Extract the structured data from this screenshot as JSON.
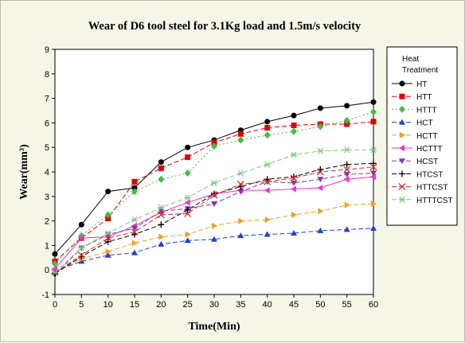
{
  "chart_data": {
    "type": "line",
    "title": "Wear of D6 tool steel for 3.1Kg load and 1.5m/s velocity",
    "xlabel": "Time(Min)",
    "ylabel": "Wear(mm³)",
    "xlim": [
      0,
      60
    ],
    "ylim": [
      -1,
      9
    ],
    "xticks": [
      0,
      5,
      10,
      15,
      20,
      25,
      30,
      35,
      40,
      45,
      50,
      55,
      60
    ],
    "yticks": [
      -1,
      0,
      1,
      2,
      3,
      4,
      5,
      6,
      7,
      8,
      9
    ],
    "legend_title_line1": "Heat",
    "legend_title_line2": "Treatment",
    "legend_position": "right",
    "x": [
      0,
      5,
      10,
      15,
      20,
      25,
      30,
      35,
      40,
      45,
      50,
      55,
      60
    ],
    "series": [
      {
        "name": "HT",
        "color": "#000000",
        "marker": "circle",
        "dash": "",
        "values": [
          0.65,
          1.85,
          3.2,
          3.35,
          4.4,
          5.0,
          5.3,
          5.7,
          6.05,
          6.3,
          6.6,
          6.7,
          6.85
        ]
      },
      {
        "name": "HTT",
        "color": "#e00000",
        "marker": "square",
        "dash": "6,3",
        "values": [
          0.35,
          1.3,
          2.1,
          3.6,
          4.15,
          4.6,
          5.2,
          5.55,
          5.8,
          5.9,
          5.95,
          5.95,
          6.05
        ]
      },
      {
        "name": "HTTT",
        "color": "#44bb44",
        "marker": "diamond",
        "dash": "2,3",
        "values": [
          0.25,
          1.4,
          2.25,
          3.2,
          3.7,
          3.95,
          5.05,
          5.3,
          5.5,
          5.65,
          5.85,
          6.1,
          6.45
        ]
      },
      {
        "name": "HCT",
        "color": "#1f3fcc",
        "marker": "triangle-up",
        "dash": "6,3",
        "values": [
          -0.05,
          0.35,
          0.6,
          0.7,
          1.05,
          1.2,
          1.25,
          1.4,
          1.45,
          1.5,
          1.6,
          1.65,
          1.7
        ]
      },
      {
        "name": "HCTT",
        "color": "#f0a020",
        "marker": "triangle-right",
        "dash": "6,3",
        "values": [
          -0.1,
          0.45,
          0.75,
          1.1,
          1.35,
          1.45,
          1.8,
          2.0,
          2.05,
          2.25,
          2.4,
          2.65,
          2.7
        ]
      },
      {
        "name": "HCTTT",
        "color": "#ee33cc",
        "marker": "triangle-left",
        "dash": "",
        "values": [
          0.05,
          1.3,
          1.35,
          1.8,
          2.35,
          2.75,
          3.1,
          3.25,
          3.25,
          3.3,
          3.35,
          3.7,
          3.8
        ]
      },
      {
        "name": "HCST",
        "color": "#8833aa",
        "marker": "triangle-down",
        "dash": "6,3",
        "values": [
          -0.2,
          0.9,
          1.45,
          1.7,
          2.4,
          2.5,
          2.7,
          3.2,
          3.6,
          3.55,
          3.7,
          3.9,
          3.95
        ]
      },
      {
        "name": "HTCST",
        "color": "#000000",
        "marker": "plus",
        "dash": "6,3",
        "values": [
          -0.15,
          0.55,
          1.15,
          1.45,
          1.85,
          2.45,
          3.1,
          3.4,
          3.7,
          3.8,
          4.1,
          4.3,
          4.35
        ]
      },
      {
        "name": "HTTCST",
        "color": "#d03030",
        "marker": "x",
        "dash": "6,3",
        "values": [
          -0.1,
          0.6,
          1.3,
          1.55,
          2.25,
          2.3,
          3.05,
          3.5,
          3.6,
          3.75,
          4.0,
          4.1,
          4.2
        ]
      },
      {
        "name": "HTTTCST",
        "color": "#77cc77",
        "marker": "asterisk",
        "dash": "6,3",
        "values": [
          -0.1,
          0.9,
          1.5,
          2.05,
          2.55,
          2.95,
          3.55,
          3.95,
          4.3,
          4.7,
          4.85,
          4.9,
          4.9
        ]
      }
    ]
  }
}
